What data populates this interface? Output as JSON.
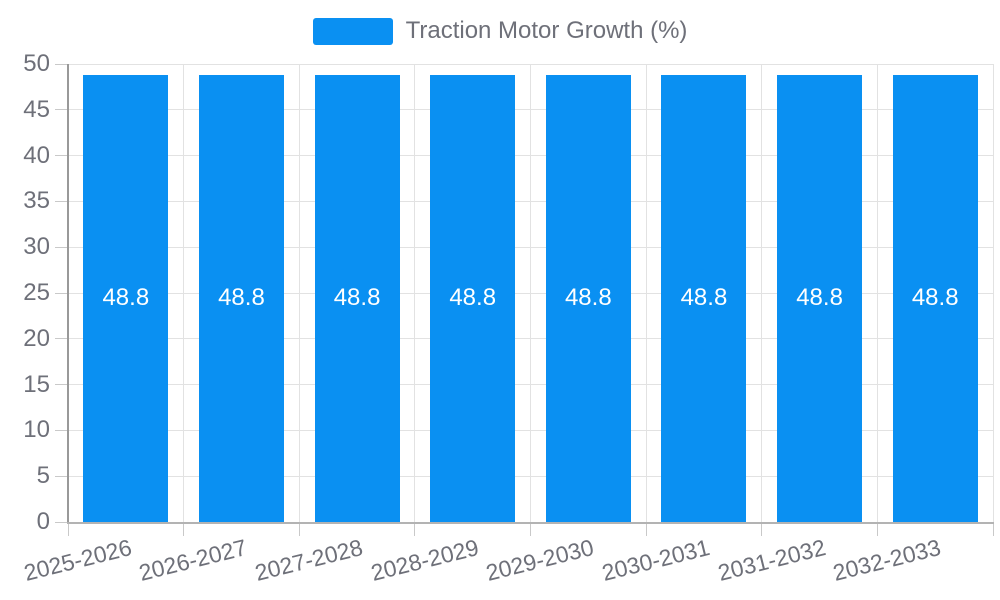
{
  "chart_data": {
    "type": "bar",
    "title": "",
    "legend": {
      "label": "Traction Motor Growth (%)",
      "position": "top-center"
    },
    "categories": [
      "2025-2026",
      "2026-2027",
      "2027-2028",
      "2028-2029",
      "2029-2030",
      "2030-2031",
      "2031-2032",
      "2032-2033"
    ],
    "series": [
      {
        "name": "Traction Motor Growth (%)",
        "values": [
          48.8,
          48.8,
          48.8,
          48.8,
          48.8,
          48.8,
          48.8,
          48.8
        ],
        "value_labels": [
          "48.8",
          "48.8",
          "48.8",
          "48.8",
          "48.8",
          "48.8",
          "48.8",
          "48.8"
        ]
      }
    ],
    "xlabel": "",
    "ylabel": "",
    "ylim": [
      0,
      50
    ],
    "yticks": [
      0,
      5,
      10,
      15,
      20,
      25,
      30,
      35,
      40,
      45,
      50
    ],
    "ytick_labels": [
      "0",
      "5",
      "10",
      "15",
      "20",
      "25",
      "30",
      "35",
      "40",
      "45",
      "50"
    ],
    "grid": true,
    "colors": {
      "bar": "#0A90F2",
      "axis_text": "#6E7079",
      "grid_line": "#E2E2E2",
      "y_axis_line": "#999999",
      "x_axis_line": "#B3B3B3",
      "tick_line": "#C9C9C9",
      "bar_value_text": "#FFFFFF",
      "background": "#FFFFFF"
    }
  }
}
